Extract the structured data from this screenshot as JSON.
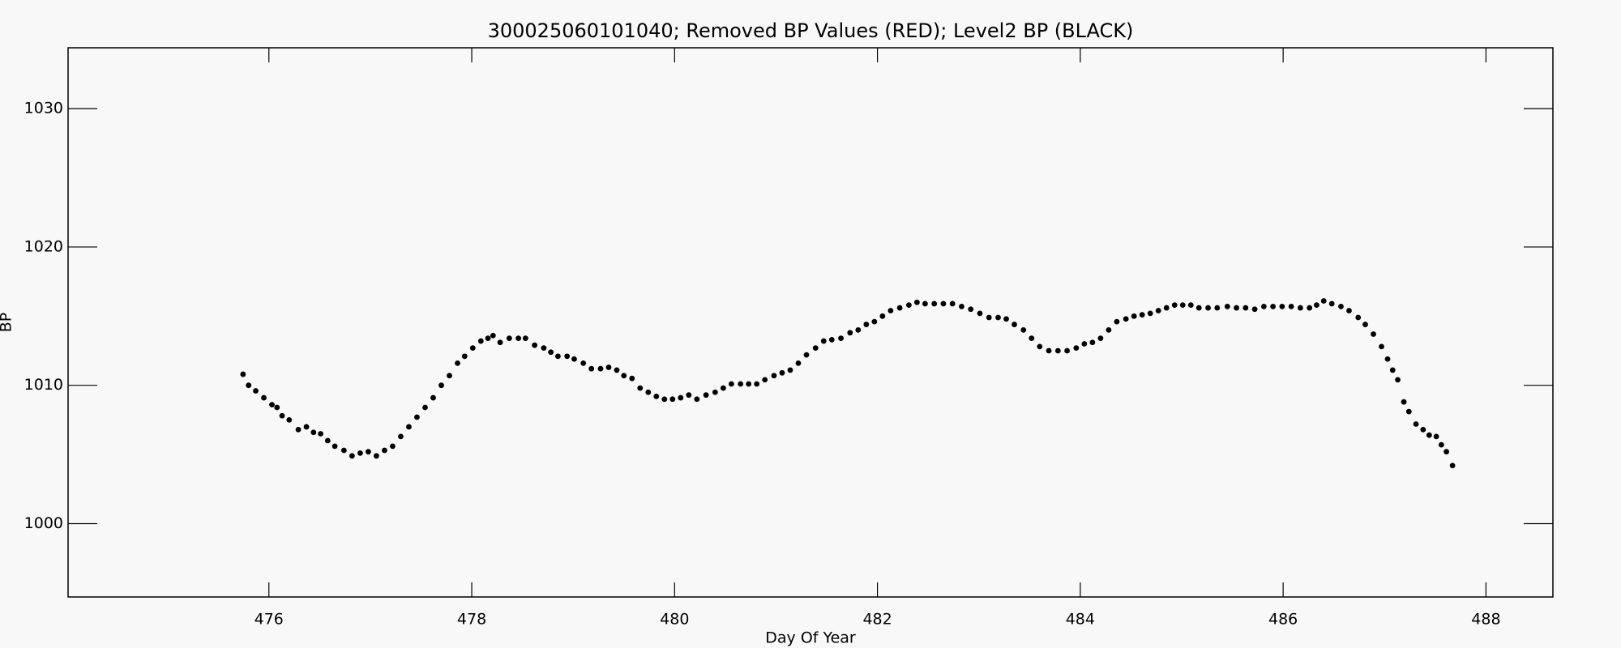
{
  "chart_data": {
    "type": "scatter",
    "title": "300025060101040; Removed BP Values (RED); Level2 BP (BLACK)",
    "x_label": "Day Of Year",
    "y_label": "BP",
    "color": "#000000",
    "x": [
      475.745,
      475.8,
      475.87,
      475.95,
      476.03,
      476.08,
      476.13,
      476.2,
      476.29,
      476.37,
      476.44,
      476.51,
      476.58,
      476.65,
      476.74,
      476.82,
      476.9,
      476.98,
      477.06,
      477.14,
      477.22,
      477.3,
      477.38,
      477.46,
      477.54,
      477.62,
      477.7,
      477.78,
      477.86,
      477.93,
      478.01,
      478.09,
      478.16,
      478.21,
      478.28,
      478.37,
      478.46,
      478.53,
      478.62,
      478.71,
      478.78,
      478.85,
      478.94,
      479.01,
      479.1,
      479.18,
      479.27,
      479.35,
      479.43,
      479.5,
      479.58,
      479.66,
      479.74,
      479.82,
      479.9,
      479.98,
      480.06,
      480.14,
      480.22,
      480.31,
      480.4,
      480.48,
      480.56,
      480.65,
      480.73,
      480.81,
      480.89,
      480.98,
      481.06,
      481.14,
      481.22,
      481.3,
      481.39,
      481.47,
      481.55,
      481.64,
      481.73,
      481.81,
      481.89,
      481.97,
      482.05,
      482.13,
      482.22,
      482.31,
      482.39,
      482.47,
      482.56,
      482.65,
      482.74,
      482.83,
      482.92,
      483.01,
      483.1,
      483.19,
      483.27,
      483.35,
      483.44,
      483.52,
      483.6,
      483.69,
      483.78,
      483.87,
      483.96,
      484.04,
      484.12,
      484.2,
      484.28,
      484.36,
      484.45,
      484.53,
      484.61,
      484.69,
      484.77,
      484.85,
      484.93,
      485.01,
      485.09,
      485.17,
      485.26,
      485.35,
      485.45,
      485.54,
      485.63,
      485.72,
      485.81,
      485.9,
      485.99,
      486.08,
      486.17,
      486.26,
      486.33,
      486.4,
      486.48,
      486.57,
      486.65,
      486.74,
      486.81,
      486.89,
      486.97,
      487.03,
      487.08,
      487.13,
      487.19,
      487.24,
      487.31,
      487.38,
      487.44,
      487.51,
      487.56,
      487.61,
      487.67
    ],
    "values": [
      1010.8,
      1010.0,
      1009.6,
      1009.1,
      1008.6,
      1008.4,
      1007.8,
      1007.5,
      1006.8,
      1007.0,
      1006.6,
      1006.5,
      1006.0,
      1005.6,
      1005.3,
      1004.9,
      1005.1,
      1005.2,
      1004.9,
      1005.3,
      1005.6,
      1006.3,
      1007.0,
      1007.7,
      1008.4,
      1009.1,
      1010.0,
      1010.7,
      1011.6,
      1012.1,
      1012.7,
      1013.2,
      1013.4,
      1013.6,
      1013.1,
      1013.4,
      1013.4,
      1013.4,
      1012.9,
      1012.7,
      1012.4,
      1012.1,
      1012.1,
      1011.9,
      1011.6,
      1011.2,
      1011.2,
      1011.3,
      1011.1,
      1010.7,
      1010.5,
      1009.8,
      1009.5,
      1009.2,
      1009.0,
      1009.0,
      1009.1,
      1009.3,
      1009.0,
      1009.3,
      1009.5,
      1009.8,
      1010.1,
      1010.1,
      1010.1,
      1010.1,
      1010.4,
      1010.7,
      1010.9,
      1011.1,
      1011.6,
      1012.2,
      1012.7,
      1013.2,
      1013.3,
      1013.4,
      1013.8,
      1014.0,
      1014.4,
      1014.6,
      1015.0,
      1015.4,
      1015.6,
      1015.8,
      1016.0,
      1015.9,
      1015.9,
      1015.9,
      1015.9,
      1015.7,
      1015.5,
      1015.2,
      1014.9,
      1014.9,
      1014.8,
      1014.4,
      1014.0,
      1013.4,
      1012.8,
      1012.5,
      1012.5,
      1012.5,
      1012.7,
      1013.0,
      1013.1,
      1013.4,
      1014.0,
      1014.6,
      1014.8,
      1015.0,
      1015.1,
      1015.2,
      1015.4,
      1015.6,
      1015.8,
      1015.8,
      1015.8,
      1015.6,
      1015.6,
      1015.6,
      1015.7,
      1015.6,
      1015.6,
      1015.5,
      1015.7,
      1015.7,
      1015.7,
      1015.7,
      1015.6,
      1015.6,
      1015.8,
      1016.1,
      1015.9,
      1015.7,
      1015.4,
      1014.9,
      1014.4,
      1013.7,
      1012.8,
      1011.9,
      1011.1,
      1010.4,
      1008.8,
      1008.1,
      1007.2,
      1006.8,
      1006.4,
      1006.3,
      1005.7,
      1005.2,
      1004.2
    ],
    "xlim": [
      474.02,
      488.66
    ],
    "xticks": [
      476,
      478,
      480,
      482,
      484,
      486,
      488
    ],
    "ylim": [
      994.7,
      1034.4
    ],
    "yticks": [
      1000,
      1010,
      1020,
      1030
    ]
  }
}
